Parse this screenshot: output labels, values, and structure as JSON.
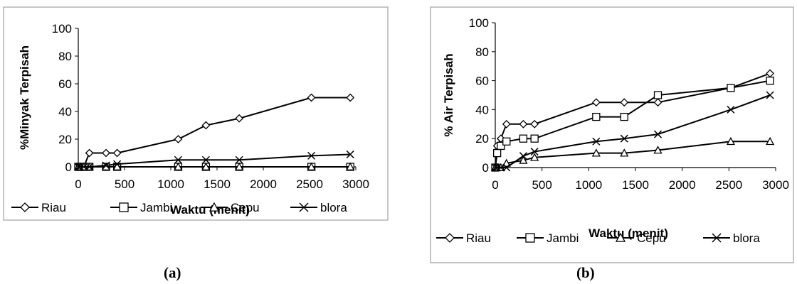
{
  "figure": {
    "captions": [
      "(a)",
      "(b)"
    ]
  },
  "legend_markers": {
    "Riau": "diamond",
    "Jambi": "square",
    "Cepu": "triangle",
    "blora": "x"
  },
  "chart_data": [
    {
      "type": "line",
      "panel": "(a)",
      "title": "",
      "xlabel": "Waktu (menit)",
      "ylabel": "%Minyak Terpisah",
      "xlim": [
        0,
        3000
      ],
      "ylim": [
        0,
        100
      ],
      "xticks": [
        "0",
        "500",
        "1000",
        "1500",
        "2000",
        "2500",
        "3000"
      ],
      "yticks": [
        "0",
        "20",
        "40",
        "60",
        "80",
        "100"
      ],
      "grid": false,
      "legend": "bottom",
      "series": [
        {
          "name": "Riau",
          "x": [
            0,
            20,
            60,
            120,
            300,
            420,
            1080,
            1380,
            1740,
            2520,
            2940
          ],
          "y": [
            0,
            0,
            0,
            10,
            10,
            10,
            20,
            30,
            35,
            50,
            50
          ]
        },
        {
          "name": "Jambi",
          "x": [
            0,
            20,
            60,
            120,
            300,
            420,
            1080,
            1380,
            1740,
            2520,
            2940
          ],
          "y": [
            0,
            0,
            0,
            0,
            0,
            0,
            0,
            0,
            0,
            0,
            0
          ]
        },
        {
          "name": "Cepu",
          "x": [
            0,
            20,
            60,
            120,
            300,
            420,
            1080,
            1380,
            1740,
            2520,
            2940
          ],
          "y": [
            0,
            0,
            0,
            0,
            0,
            0,
            0,
            0,
            0,
            0,
            0
          ]
        },
        {
          "name": "blora",
          "x": [
            0,
            20,
            60,
            120,
            300,
            420,
            1080,
            1380,
            1740,
            2520,
            2940
          ],
          "y": [
            0,
            0,
            0,
            0,
            1,
            2,
            5,
            5,
            5,
            8,
            9
          ]
        }
      ]
    },
    {
      "type": "line",
      "panel": "(b)",
      "title": "",
      "xlabel": "Waktu (menit)",
      "ylabel": "% Air Terpisah",
      "xlim": [
        0,
        3000
      ],
      "ylim": [
        0,
        100
      ],
      "xticks": [
        "0",
        "500",
        "1000",
        "1500",
        "2000",
        "2500",
        "3000"
      ],
      "yticks": [
        "0",
        "20",
        "40",
        "60",
        "80",
        "100"
      ],
      "grid": false,
      "legend": "bottom",
      "series": [
        {
          "name": "Riau",
          "x": [
            0,
            20,
            60,
            120,
            300,
            420,
            1080,
            1380,
            1740,
            2520,
            2940
          ],
          "y": [
            0,
            15,
            20,
            30,
            30,
            30,
            45,
            45,
            45,
            55,
            65
          ]
        },
        {
          "name": "Jambi",
          "x": [
            0,
            20,
            60,
            120,
            300,
            420,
            1080,
            1380,
            1740,
            2520,
            2940
          ],
          "y": [
            0,
            10,
            15,
            18,
            20,
            20,
            35,
            35,
            50,
            55,
            60
          ]
        },
        {
          "name": "Cepu",
          "x": [
            0,
            20,
            60,
            120,
            300,
            420,
            1080,
            1380,
            1740,
            2520,
            2940
          ],
          "y": [
            0,
            0,
            0,
            3,
            5,
            7,
            10,
            10,
            12,
            18,
            18
          ]
        },
        {
          "name": "blora",
          "x": [
            0,
            20,
            60,
            120,
            300,
            420,
            1080,
            1380,
            1740,
            2520,
            2940
          ],
          "y": [
            0,
            0,
            0,
            0,
            8,
            11,
            18,
            20,
            23,
            40,
            50
          ]
        }
      ]
    }
  ]
}
